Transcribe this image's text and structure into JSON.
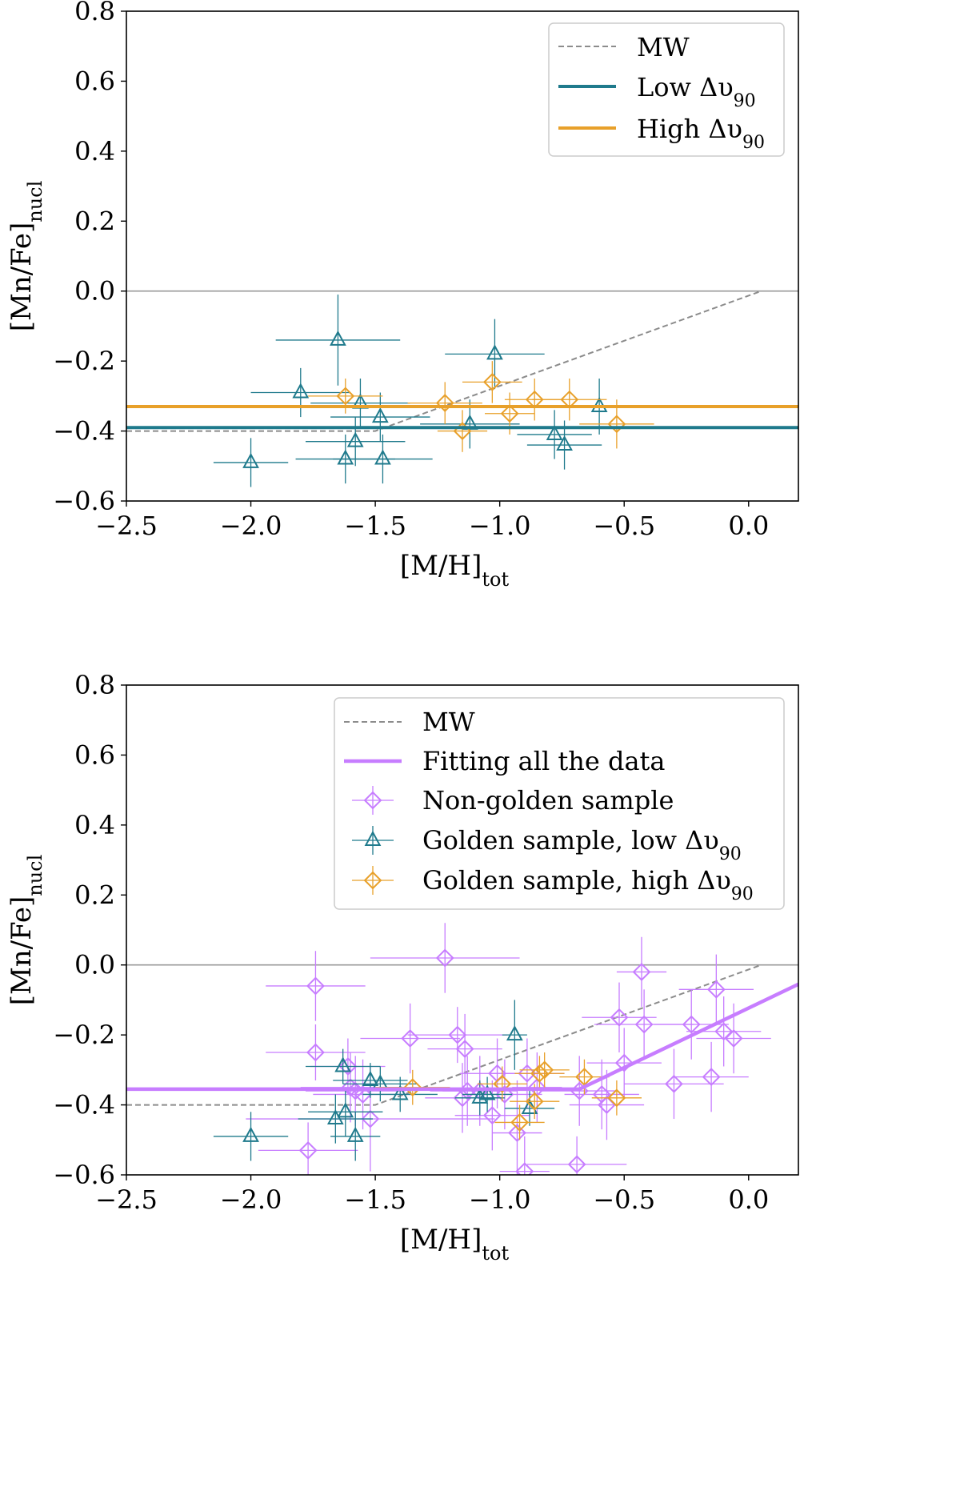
{
  "chart_data": [
    {
      "type": "scatter",
      "panel": "top",
      "xlabel": "[M/H]",
      "xlabel_sub": "tot",
      "ylabel": "[Mn/Fe]",
      "ylabel_sub": "nucl",
      "xlim": [
        -2.5,
        0.2
      ],
      "ylim": [
        -0.6,
        0.8
      ],
      "xticks": [
        -2.5,
        -2.0,
        -1.5,
        -1.0,
        -0.5,
        0.0
      ],
      "xtick_labels": [
        "−2.5",
        "−2.0",
        "−1.5",
        "−1.0",
        "−0.5",
        "0.0"
      ],
      "yticks": [
        -0.6,
        -0.4,
        -0.2,
        0.0,
        0.2,
        0.4,
        0.6,
        0.8
      ],
      "ytick_labels": [
        "−0.6",
        "−0.4",
        "−0.2",
        "0.0",
        "0.2",
        "0.4",
        "0.6",
        "0.8"
      ],
      "legend_position": "top-right",
      "zero_line": 0.0,
      "mw_line": {
        "label": "MW",
        "points": [
          [
            -2.5,
            -0.4
          ],
          [
            -1.5,
            -0.4
          ],
          [
            0.05,
            0.0
          ]
        ]
      },
      "hlines": [
        {
          "label": "Low Δυ",
          "label_sub": "90",
          "y": -0.39,
          "color": "#1f7a8c"
        },
        {
          "label": "High Δυ",
          "label_sub": "90",
          "y": -0.33,
          "color": "#e8a02a"
        }
      ],
      "series": [
        {
          "name": "Low Δυ90",
          "marker": "triangle",
          "color": "#1f7a8c",
          "points": [
            {
              "x": -2.0,
              "y": -0.49,
              "xerr": 0.15,
              "yerr": 0.07
            },
            {
              "x": -1.8,
              "y": -0.29,
              "xerr": 0.2,
              "yerr": 0.07
            },
            {
              "x": -1.65,
              "y": -0.14,
              "xerr": 0.25,
              "yerr": 0.13
            },
            {
              "x": -1.62,
              "y": -0.48,
              "xerr": 0.2,
              "yerr": 0.07
            },
            {
              "x": -1.58,
              "y": -0.43,
              "xerr": 0.2,
              "yerr": 0.07
            },
            {
              "x": -1.56,
              "y": -0.32,
              "xerr": 0.2,
              "yerr": 0.07
            },
            {
              "x": -1.48,
              "y": -0.36,
              "xerr": 0.2,
              "yerr": 0.07
            },
            {
              "x": -1.47,
              "y": -0.48,
              "xerr": 0.2,
              "yerr": 0.07
            },
            {
              "x": -1.12,
              "y": -0.38,
              "xerr": 0.2,
              "yerr": 0.07
            },
            {
              "x": -1.02,
              "y": -0.18,
              "xerr": 0.2,
              "yerr": 0.1
            },
            {
              "x": -0.78,
              "y": -0.41,
              "xerr": 0.15,
              "yerr": 0.07
            },
            {
              "x": -0.74,
              "y": -0.44,
              "xerr": 0.15,
              "yerr": 0.07
            },
            {
              "x": -0.6,
              "y": -0.33,
              "xerr": 0.2,
              "yerr": 0.08
            }
          ]
        },
        {
          "name": "High Δυ90",
          "marker": "diamond",
          "color": "#e8a02a",
          "points": [
            {
              "x": -1.62,
              "y": -0.3,
              "xerr": 0.15,
              "yerr": 0.05
            },
            {
              "x": -1.22,
              "y": -0.32,
              "xerr": 0.15,
              "yerr": 0.06
            },
            {
              "x": -1.15,
              "y": -0.4,
              "xerr": 0.1,
              "yerr": 0.06
            },
            {
              "x": -1.03,
              "y": -0.26,
              "xerr": 0.12,
              "yerr": 0.06
            },
            {
              "x": -0.96,
              "y": -0.35,
              "xerr": 0.1,
              "yerr": 0.06
            },
            {
              "x": -0.86,
              "y": -0.31,
              "xerr": 0.12,
              "yerr": 0.06
            },
            {
              "x": -0.72,
              "y": -0.31,
              "xerr": 0.15,
              "yerr": 0.06
            },
            {
              "x": -0.53,
              "y": -0.38,
              "xerr": 0.15,
              "yerr": 0.07
            }
          ]
        }
      ]
    },
    {
      "type": "scatter",
      "panel": "bottom",
      "xlabel": "[M/H]",
      "xlabel_sub": "tot",
      "ylabel": "[Mn/Fe]",
      "ylabel_sub": "nucl",
      "xlim": [
        -2.5,
        0.2
      ],
      "ylim": [
        -0.6,
        0.8
      ],
      "xticks": [
        -2.5,
        -2.0,
        -1.5,
        -1.0,
        -0.5,
        0.0
      ],
      "xtick_labels": [
        "−2.5",
        "−2.0",
        "−1.5",
        "−1.0",
        "−0.5",
        "0.0"
      ],
      "yticks": [
        -0.6,
        -0.4,
        -0.2,
        0.0,
        0.2,
        0.4,
        0.6,
        0.8
      ],
      "ytick_labels": [
        "−0.6",
        "−0.4",
        "−0.2",
        "0.0",
        "0.2",
        "0.4",
        "0.6",
        "0.8"
      ],
      "legend_position": "top-right",
      "zero_line": 0.0,
      "mw_line": {
        "label": "MW",
        "points": [
          [
            -2.5,
            -0.4
          ],
          [
            -1.5,
            -0.4
          ],
          [
            0.05,
            0.0
          ]
        ]
      },
      "fit_line": {
        "label": "Fitting all the data",
        "color": "#c77dff",
        "points": [
          [
            -2.5,
            -0.355
          ],
          [
            -0.68,
            -0.355
          ],
          [
            0.2,
            -0.055
          ]
        ]
      },
      "series": [
        {
          "name": "Non-golden sample",
          "marker": "diamond",
          "color": "#c77dff",
          "points": [
            {
              "x": -1.77,
              "y": -0.53,
              "xerr": 0.2,
              "yerr": 0.08
            },
            {
              "x": -1.74,
              "y": -0.25,
              "xerr": 0.2,
              "yerr": 0.08
            },
            {
              "x": -1.74,
              "y": -0.06,
              "xerr": 0.2,
              "yerr": 0.1
            },
            {
              "x": -1.61,
              "y": -0.29,
              "xerr": 0.15,
              "yerr": 0.08
            },
            {
              "x": -1.6,
              "y": -0.35,
              "xerr": 0.2,
              "yerr": 0.1
            },
            {
              "x": -1.58,
              "y": -0.36,
              "xerr": 0.2,
              "yerr": 0.1
            },
            {
              "x": -1.55,
              "y": -0.37,
              "xerr": 0.2,
              "yerr": 0.1
            },
            {
              "x": -1.52,
              "y": -0.44,
              "xerr": 0.5,
              "yerr": 0.15
            },
            {
              "x": -1.36,
              "y": -0.21,
              "xerr": 0.2,
              "yerr": 0.1
            },
            {
              "x": -1.22,
              "y": 0.02,
              "xerr": 0.3,
              "yerr": 0.1
            },
            {
              "x": -1.17,
              "y": -0.2,
              "xerr": 0.2,
              "yerr": 0.08
            },
            {
              "x": -1.15,
              "y": -0.38,
              "xerr": 0.15,
              "yerr": 0.1
            },
            {
              "x": -1.14,
              "y": -0.24,
              "xerr": 0.15,
              "yerr": 0.1
            },
            {
              "x": -1.13,
              "y": -0.36,
              "xerr": 0.15,
              "yerr": 0.1
            },
            {
              "x": -1.08,
              "y": -0.36,
              "xerr": 0.15,
              "yerr": 0.1
            },
            {
              "x": -1.03,
              "y": -0.43,
              "xerr": 0.15,
              "yerr": 0.1
            },
            {
              "x": -1.01,
              "y": -0.31,
              "xerr": 0.15,
              "yerr": 0.1
            },
            {
              "x": -0.98,
              "y": -0.37,
              "xerr": 0.15,
              "yerr": 0.1
            },
            {
              "x": -0.93,
              "y": -0.48,
              "xerr": 0.1,
              "yerr": 0.15
            },
            {
              "x": -0.9,
              "y": -0.59,
              "xerr": 0.1,
              "yerr": 0.1
            },
            {
              "x": -0.89,
              "y": -0.31,
              "xerr": 0.15,
              "yerr": 0.1
            },
            {
              "x": -0.85,
              "y": -0.35,
              "xerr": 0.1,
              "yerr": 0.1
            },
            {
              "x": -0.69,
              "y": -0.57,
              "xerr": 0.2,
              "yerr": 0.08
            },
            {
              "x": -0.68,
              "y": -0.36,
              "xerr": 0.15,
              "yerr": 0.1
            },
            {
              "x": -0.59,
              "y": -0.37,
              "xerr": 0.15,
              "yerr": 0.1
            },
            {
              "x": -0.57,
              "y": -0.4,
              "xerr": 0.15,
              "yerr": 0.1
            },
            {
              "x": -0.52,
              "y": -0.15,
              "xerr": 0.15,
              "yerr": 0.1
            },
            {
              "x": -0.5,
              "y": -0.28,
              "xerr": 0.15,
              "yerr": 0.1
            },
            {
              "x": -0.43,
              "y": -0.02,
              "xerr": 0.1,
              "yerr": 0.1
            },
            {
              "x": -0.42,
              "y": -0.17,
              "xerr": 0.2,
              "yerr": 0.1
            },
            {
              "x": -0.3,
              "y": -0.34,
              "xerr": 0.2,
              "yerr": 0.1
            },
            {
              "x": -0.23,
              "y": -0.17,
              "xerr": 0.15,
              "yerr": 0.1
            },
            {
              "x": -0.15,
              "y": -0.32,
              "xerr": 0.15,
              "yerr": 0.1
            },
            {
              "x": -0.13,
              "y": -0.07,
              "xerr": 0.15,
              "yerr": 0.1
            },
            {
              "x": -0.1,
              "y": -0.19,
              "xerr": 0.15,
              "yerr": 0.1
            },
            {
              "x": -0.06,
              "y": -0.21,
              "xerr": 0.15,
              "yerr": 0.1
            }
          ]
        },
        {
          "name": "Golden sample, low Δυ90",
          "marker": "triangle",
          "color": "#1f7a8c",
          "points": [
            {
              "x": -2.0,
              "y": -0.49,
              "xerr": 0.15,
              "yerr": 0.07
            },
            {
              "x": -1.66,
              "y": -0.44,
              "xerr": 0.15,
              "yerr": 0.07
            },
            {
              "x": -1.63,
              "y": -0.29,
              "xerr": 0.15,
              "yerr": 0.05
            },
            {
              "x": -1.62,
              "y": -0.42,
              "xerr": 0.15,
              "yerr": 0.07
            },
            {
              "x": -1.58,
              "y": -0.49,
              "xerr": 0.1,
              "yerr": 0.07
            },
            {
              "x": -1.52,
              "y": -0.33,
              "xerr": 0.15,
              "yerr": 0.05
            },
            {
              "x": -1.48,
              "y": -0.34,
              "xerr": 0.15,
              "yerr": 0.05
            },
            {
              "x": -1.4,
              "y": -0.37,
              "xerr": 0.15,
              "yerr": 0.05
            },
            {
              "x": -1.08,
              "y": -0.38,
              "xerr": 0.1,
              "yerr": 0.05
            },
            {
              "x": -1.05,
              "y": -0.37,
              "xerr": 0.1,
              "yerr": 0.05
            },
            {
              "x": -0.94,
              "y": -0.2,
              "xerr": 0.05,
              "yerr": 0.1
            },
            {
              "x": -0.88,
              "y": -0.41,
              "xerr": 0.1,
              "yerr": 0.05
            }
          ]
        },
        {
          "name": "Golden sample, high Δυ90",
          "marker": "diamond",
          "color": "#e8a02a",
          "points": [
            {
              "x": -1.35,
              "y": -0.35,
              "xerr": 0.15,
              "yerr": 0.05
            },
            {
              "x": -0.99,
              "y": -0.34,
              "xerr": 0.1,
              "yerr": 0.05
            },
            {
              "x": -0.92,
              "y": -0.45,
              "xerr": 0.1,
              "yerr": 0.05
            },
            {
              "x": -0.86,
              "y": -0.39,
              "xerr": 0.1,
              "yerr": 0.05
            },
            {
              "x": -0.84,
              "y": -0.31,
              "xerr": 0.1,
              "yerr": 0.05
            },
            {
              "x": -0.82,
              "y": -0.3,
              "xerr": 0.1,
              "yerr": 0.05
            },
            {
              "x": -0.66,
              "y": -0.32,
              "xerr": 0.1,
              "yerr": 0.05
            },
            {
              "x": -0.53,
              "y": -0.38,
              "xerr": 0.1,
              "yerr": 0.05
            }
          ]
        }
      ]
    }
  ]
}
